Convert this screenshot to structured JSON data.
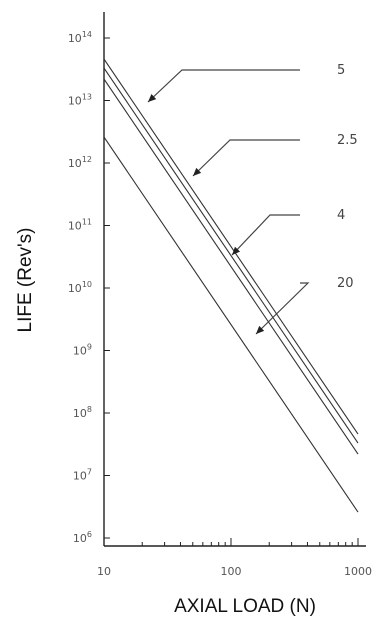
{
  "chart_data": {
    "type": "line",
    "title": "",
    "xlabel": "AXIAL LOAD (N)",
    "ylabel": "LIFE (Rev's)",
    "x_scale": "log",
    "y_scale": "log",
    "xlim": [
      10,
      1000
    ],
    "ylim": [
      1000000,
      100000000000000
    ],
    "grid": false,
    "x_ticks": [
      {
        "value": 10,
        "label": "10"
      },
      {
        "value": 100,
        "label": "100"
      },
      {
        "value": 1000,
        "label": "1000"
      }
    ],
    "y_ticks": [
      {
        "value": 1000000,
        "label": "10^6"
      },
      {
        "value": 10000000,
        "label": "10^7"
      },
      {
        "value": 100000000,
        "label": "10^8"
      },
      {
        "value": 1000000000,
        "label": "10^9"
      },
      {
        "value": 10000000000,
        "label": "10^10"
      },
      {
        "value": 100000000000,
        "label": "10^11"
      },
      {
        "value": 1000000000000,
        "label": "10^12"
      },
      {
        "value": 10000000000000,
        "label": "10^13"
      },
      {
        "value": 100000000000000,
        "label": "10^14"
      }
    ],
    "series": [
      {
        "name": "5",
        "x": [
          10,
          1000
        ],
        "y": [
          46000000000000,
          46000000
        ]
      },
      {
        "name": "2.5",
        "x": [
          10,
          1000
        ],
        "y": [
          33000000000000,
          33000000
        ]
      },
      {
        "name": "4",
        "x": [
          10,
          1000
        ],
        "y": [
          22000000000000,
          22000000
        ]
      },
      {
        "name": "20",
        "x": [
          10,
          1000
        ],
        "y": [
          2600000000000,
          2600000
        ]
      }
    ]
  }
}
